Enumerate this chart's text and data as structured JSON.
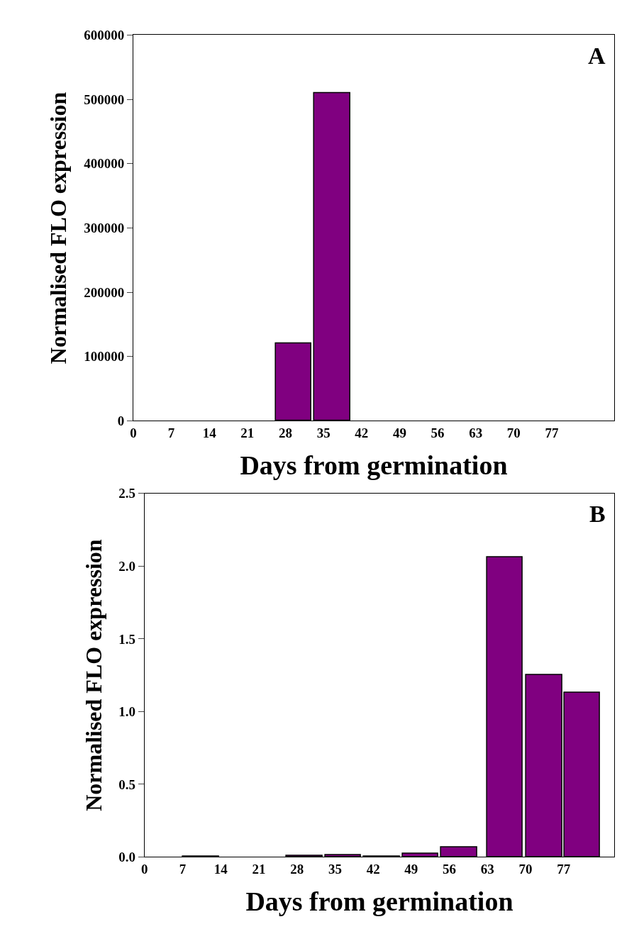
{
  "chart_data": [
    {
      "type": "bar",
      "xlabel": "Days from germination",
      "ylabel": "Normalised FLO expression",
      "annotations": [
        "A"
      ],
      "x": [
        29.5,
        36.6
      ],
      "values": [
        120000,
        510000
      ],
      "color": "#800080",
      "xlim": [
        0,
        88.5
      ],
      "xticks": [
        0,
        7,
        14,
        21,
        28,
        35,
        42,
        49,
        56,
        63,
        70,
        77
      ],
      "ylim": [
        0,
        600000
      ],
      "yticks": [
        0,
        100000,
        200000,
        300000,
        400000,
        500000,
        600000
      ]
    },
    {
      "type": "bar",
      "xlabel": "Days from germination",
      "ylabel": "Normalised FLO expression",
      "annotations": [
        "B"
      ],
      "x": [
        10.4,
        29.4,
        36.5,
        43.6,
        50.7,
        57.8,
        66.2,
        73.4,
        80.4
      ],
      "values": [
        0.003,
        0.01,
        0.015,
        0.003,
        0.025,
        0.065,
        2.06,
        1.25,
        1.13
      ],
      "color": "#800080",
      "xlim": [
        0,
        86.3
      ],
      "xticks": [
        0,
        7,
        14,
        21,
        28,
        35,
        42,
        49,
        56,
        63,
        70,
        77
      ],
      "ylim": [
        0,
        2.5
      ],
      "yticks": [
        {
          "value": 0,
          "label": "0.0"
        },
        0.5,
        {
          "value": 1,
          "label": "1.0"
        },
        1.5,
        {
          "value": 2,
          "label": "2.0"
        },
        2.5
      ]
    }
  ]
}
